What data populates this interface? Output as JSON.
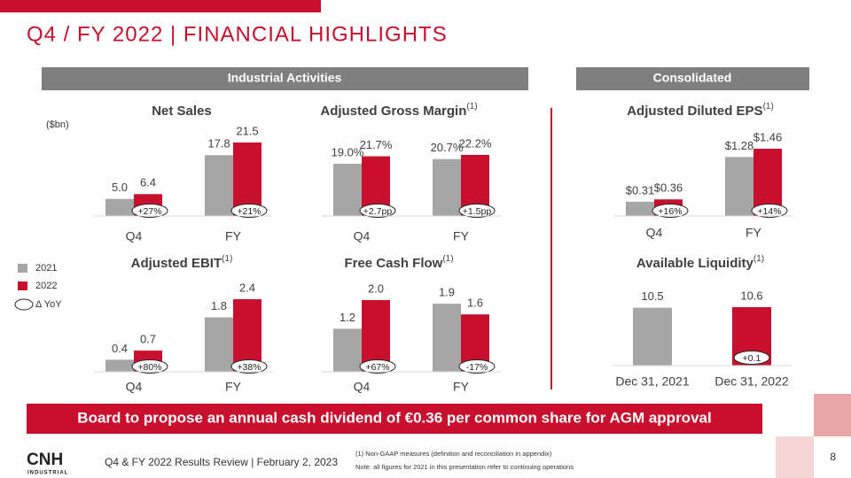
{
  "title": "Q4 / FY 2022 | FINANCIAL HIGHLIGHTS",
  "sections": [
    "Industrial Activities",
    "Consolidated"
  ],
  "unit_note": "($bn)",
  "legend": {
    "series": [
      {
        "name": "2021",
        "color": "#a6a6a6"
      },
      {
        "name": "2022",
        "color": "#c8102e"
      }
    ],
    "delta_label": "Δ YoY"
  },
  "chart_data": [
    {
      "type": "bar",
      "title": "Net Sales",
      "categories": [
        "Q4",
        "FY"
      ],
      "series": [
        {
          "values": [
            5.0,
            17.8
          ],
          "value_labels": [
            "5.0",
            "17.8"
          ]
        },
        {
          "values": [
            6.4,
            21.5
          ],
          "value_labels": [
            "6.4",
            "21.5"
          ]
        }
      ],
      "annotations": [
        "+27%",
        "+21%"
      ]
    },
    {
      "type": "bar",
      "title": "Adjusted Gross Margin",
      "title_note": "(1)",
      "categories": [
        "Q4",
        "FY"
      ],
      "series": [
        {
          "values": [
            19.0,
            20.7
          ],
          "value_labels": [
            "19.0%",
            "20.7%"
          ]
        },
        {
          "values": [
            21.7,
            22.2
          ],
          "value_labels": [
            "21.7%",
            "22.2%"
          ]
        }
      ],
      "annotations": [
        "+2.7pp",
        "+1.5pp"
      ]
    },
    {
      "type": "bar",
      "title": "Adjusted Diluted EPS",
      "title_note": "(1)",
      "categories": [
        "Q4",
        "FY"
      ],
      "series": [
        {
          "values": [
            0.31,
            1.28
          ],
          "value_labels": [
            "$0.31",
            "$1.28"
          ]
        },
        {
          "values": [
            0.36,
            1.46
          ],
          "value_labels": [
            "$0.36",
            "$1.46"
          ]
        }
      ],
      "annotations": [
        "+16%",
        "+14%"
      ]
    },
    {
      "type": "bar",
      "title": "Adjusted EBIT",
      "title_note": "(1)",
      "categories": [
        "Q4",
        "FY"
      ],
      "series": [
        {
          "values": [
            0.4,
            1.8
          ],
          "value_labels": [
            "0.4",
            "1.8"
          ]
        },
        {
          "values": [
            0.7,
            2.4
          ],
          "value_labels": [
            "0.7",
            "2.4"
          ]
        }
      ],
      "annotations": [
        "+80%",
        "+38%"
      ]
    },
    {
      "type": "bar",
      "title": "Free Cash Flow",
      "title_note": "(1)",
      "categories": [
        "Q4",
        "FY"
      ],
      "series": [
        {
          "values": [
            1.2,
            1.9
          ],
          "value_labels": [
            "1.2",
            "1.9"
          ]
        },
        {
          "values": [
            2.0,
            1.6
          ],
          "value_labels": [
            "2.0",
            "1.6"
          ]
        }
      ],
      "annotations": [
        "+67%",
        "-17%"
      ]
    },
    {
      "type": "single",
      "title": "Available Liquidity",
      "title_note": "(1)",
      "categories": [
        "Dec 31, 2021",
        "Dec 31, 2022"
      ],
      "values": [
        10.5,
        10.6
      ],
      "colors": [
        "#a6a6a6",
        "#c8102e"
      ],
      "annotation": "+0.1"
    }
  ],
  "banner": "Board to propose an annual cash dividend of €0.36 per common share for AGM approval",
  "footer": {
    "logo": "CNH",
    "logo_sub": "INDUSTRIAL",
    "text": "Q4 & FY 2022 Results Review | February 2, 2023",
    "notes": [
      "(1) Non-GAAP measures (definition and reconciliation in appendix)",
      "Note: all figures for 2021 in this presentation refer to continuing operations"
    ],
    "page": "8"
  }
}
